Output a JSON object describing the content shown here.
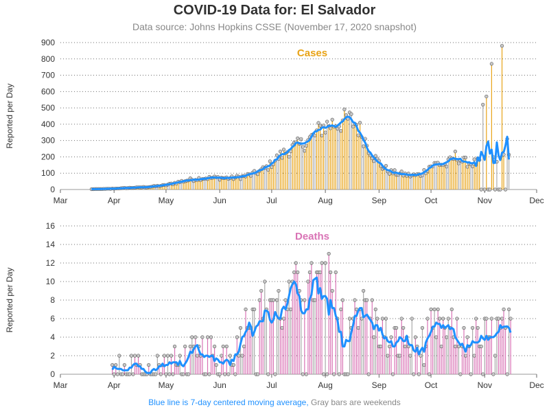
{
  "title": "COVID-19 Data for: El Salvador",
  "subtitle": "Data source: Johns Hopkins CSSE (November 17, 2020 snapshot)",
  "footer": {
    "note_blue": "Blue line is 7-day centered moving average,",
    "note_gray": "Gray bars are weekends"
  },
  "colors": {
    "cases_bar": "#e8a317",
    "deaths_bar": "#d973b5",
    "weekend_bar": "#a9a9a9",
    "moving_average": "#1e90ff",
    "marker_fill": "#c8c8c8",
    "grid": "#6e6e6e"
  },
  "chart_data": [
    {
      "type": "bar",
      "panel": "cases",
      "label": "Cases",
      "ylabel": "Reported per Day",
      "ylim": [
        0,
        900
      ],
      "yticks": [
        0,
        100,
        200,
        300,
        400,
        500,
        600,
        700,
        800,
        900
      ],
      "x_tick_labels": [
        "Mar",
        "Apr",
        "May",
        "Jun",
        "Jul",
        "Aug",
        "Sep",
        "Oct",
        "Nov",
        "Dec"
      ],
      "x_tick_dates": [
        "2020-03-01",
        "2020-04-01",
        "2020-05-01",
        "2020-06-01",
        "2020-07-01",
        "2020-08-01",
        "2020-09-01",
        "2020-10-01",
        "2020-11-01",
        "2020-12-01"
      ],
      "grid": "horizontal dotted",
      "anchors": [
        [
          "2020-03-19",
          2
        ],
        [
          "2020-03-31",
          5
        ],
        [
          "2020-04-10",
          10
        ],
        [
          "2020-04-20",
          15
        ],
        [
          "2020-04-30",
          25
        ],
        [
          "2020-05-08",
          45
        ],
        [
          "2020-05-15",
          60
        ],
        [
          "2020-05-22",
          70
        ],
        [
          "2020-05-31",
          72
        ],
        [
          "2020-06-08",
          70
        ],
        [
          "2020-06-15",
          80
        ],
        [
          "2020-06-22",
          100
        ],
        [
          "2020-06-29",
          140
        ],
        [
          "2020-07-05",
          200
        ],
        [
          "2020-07-12",
          250
        ],
        [
          "2020-07-19",
          280
        ],
        [
          "2020-07-25",
          320
        ],
        [
          "2020-07-30",
          380
        ],
        [
          "2020-08-04",
          400
        ],
        [
          "2020-08-09",
          410
        ],
        [
          "2020-08-14",
          430
        ],
        [
          "2020-08-19",
          400
        ],
        [
          "2020-08-24",
          300
        ],
        [
          "2020-08-29",
          200
        ],
        [
          "2020-09-03",
          140
        ],
        [
          "2020-09-08",
          105
        ],
        [
          "2020-09-14",
          95
        ],
        [
          "2020-09-20",
          85
        ],
        [
          "2020-09-25",
          90
        ],
        [
          "2020-09-30",
          140
        ],
        [
          "2020-10-05",
          160
        ],
        [
          "2020-10-10",
          150
        ],
        [
          "2020-10-15",
          205
        ],
        [
          "2020-10-20",
          170
        ],
        [
          "2020-10-25",
          160
        ],
        [
          "2020-10-30",
          170
        ],
        [
          "2020-11-03",
          220
        ],
        [
          "2020-11-06",
          170
        ],
        [
          "2020-11-10",
          175
        ],
        [
          "2020-11-14",
          215
        ]
      ],
      "spikes": [
        [
          "2020-10-31",
          520
        ],
        [
          "2020-11-02",
          570
        ],
        [
          "2020-11-05",
          770
        ],
        [
          "2020-11-08",
          170
        ],
        [
          "2020-11-11",
          880
        ],
        [
          "2020-11-14",
          310
        ]
      ],
      "zero_days": [
        "2020-10-30",
        "2020-11-01",
        "2020-11-03",
        "2020-11-04",
        "2020-11-07",
        "2020-11-09",
        "2020-11-10",
        "2020-11-13"
      ],
      "data_start": "2020-03-19",
      "data_end": "2020-11-15"
    },
    {
      "type": "bar",
      "panel": "deaths",
      "label": "Deaths",
      "ylabel": "Reported per Day",
      "ylim": [
        0,
        16
      ],
      "yticks": [
        0,
        2,
        4,
        6,
        8,
        10,
        12,
        14,
        16
      ],
      "x_tick_labels": [
        "Mar",
        "Apr",
        "May",
        "Jun",
        "Jul",
        "Aug",
        "Sep",
        "Oct",
        "Nov",
        "Dec"
      ],
      "x_tick_dates": [
        "2020-03-01",
        "2020-04-01",
        "2020-05-01",
        "2020-06-01",
        "2020-07-01",
        "2020-08-01",
        "2020-09-01",
        "2020-10-01",
        "2020-11-01",
        "2020-12-01"
      ],
      "grid": "horizontal dotted",
      "anchors": [
        [
          "2020-03-31",
          0.3
        ],
        [
          "2020-04-05",
          0.4
        ],
        [
          "2020-04-10",
          0.2
        ],
        [
          "2020-04-20",
          0.1
        ],
        [
          "2020-04-30",
          0.5
        ],
        [
          "2020-05-08",
          1.0
        ],
        [
          "2020-05-16",
          1.5
        ],
        [
          "2020-05-24",
          1.5
        ],
        [
          "2020-06-01",
          2.0
        ],
        [
          "2020-06-08",
          3.0
        ],
        [
          "2020-06-15",
          5.0
        ],
        [
          "2020-06-20",
          7.5
        ],
        [
          "2020-06-27",
          8.0
        ],
        [
          "2020-07-02",
          8.5
        ],
        [
          "2020-07-07",
          6.5
        ],
        [
          "2020-07-12",
          7.5
        ],
        [
          "2020-07-16",
          10.5
        ],
        [
          "2020-07-21",
          9.0
        ],
        [
          "2020-07-27",
          9.5
        ],
        [
          "2020-08-01",
          11.5
        ],
        [
          "2020-08-06",
          9.0
        ],
        [
          "2020-08-10",
          8.0
        ],
        [
          "2020-08-15",
          7.0
        ],
        [
          "2020-08-20",
          7.5
        ],
        [
          "2020-08-25",
          7.0
        ],
        [
          "2020-08-30",
          5.5
        ],
        [
          "2020-09-04",
          4.0
        ],
        [
          "2020-09-10",
          3.5
        ],
        [
          "2020-09-15",
          4.0
        ],
        [
          "2020-09-20",
          3.5
        ],
        [
          "2020-09-25",
          2.5
        ],
        [
          "2020-09-29",
          3.5
        ],
        [
          "2020-10-03",
          5.0
        ],
        [
          "2020-10-08",
          4.5
        ],
        [
          "2020-10-14",
          4.5
        ],
        [
          "2020-10-20",
          4.0
        ],
        [
          "2020-10-26",
          4.0
        ],
        [
          "2020-11-01",
          4.0
        ],
        [
          "2020-11-06",
          4.5
        ],
        [
          "2020-11-11",
          4.5
        ],
        [
          "2020-11-15",
          5.0
        ]
      ],
      "data_start": "2020-03-31",
      "data_end": "2020-11-16"
    }
  ]
}
